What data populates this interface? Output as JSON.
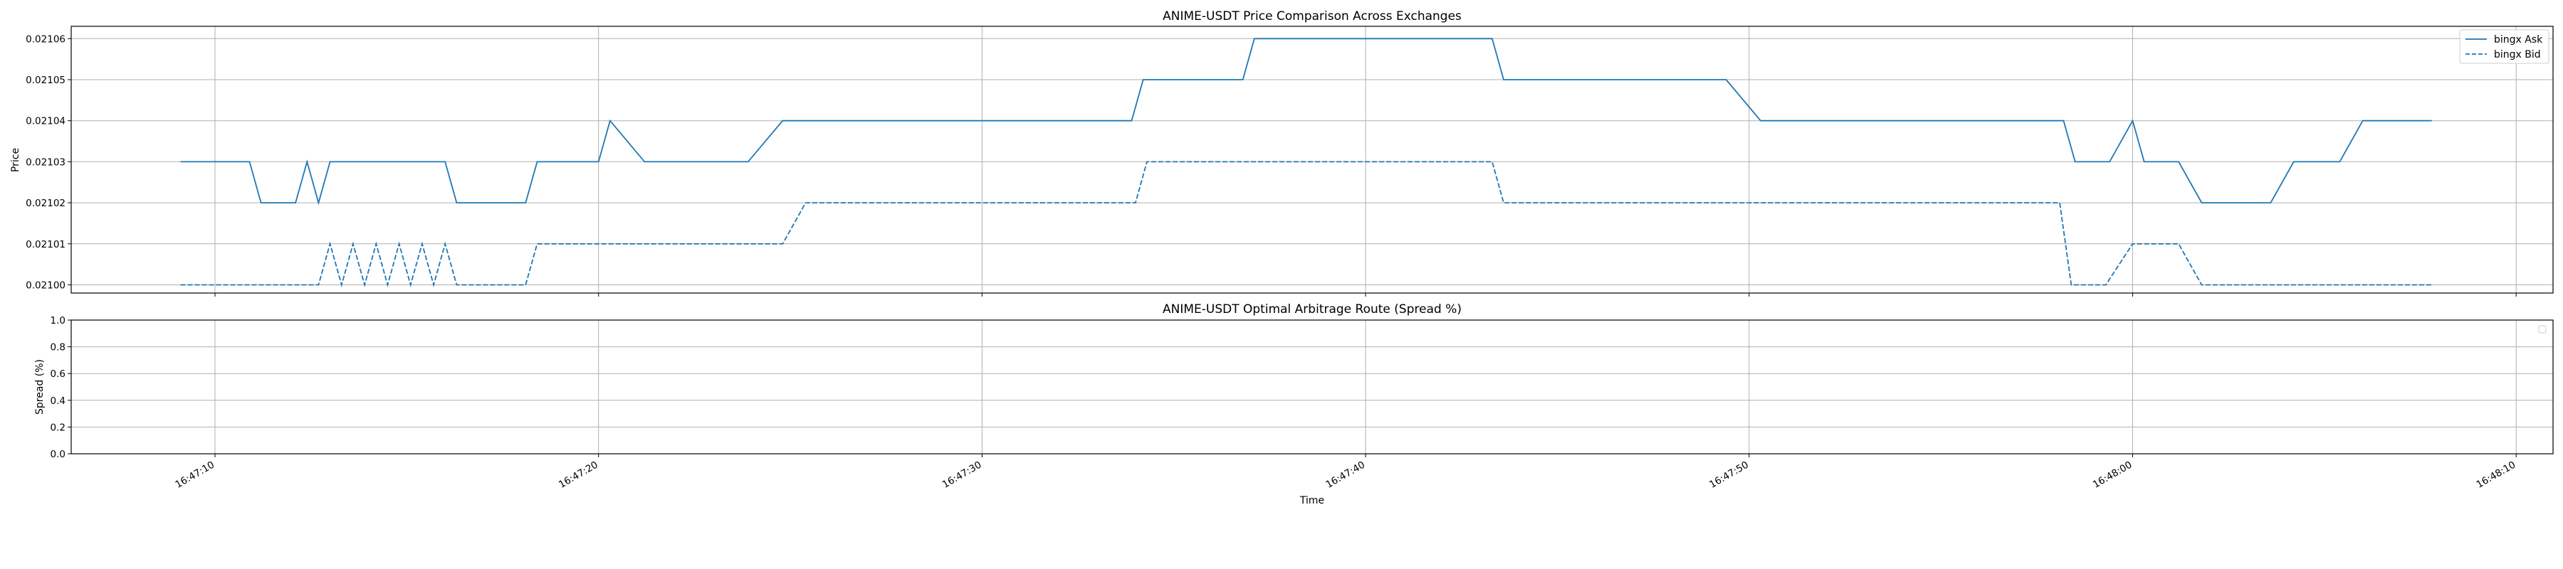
{
  "chart_data": [
    {
      "type": "line",
      "title": "ANIME-USDT Price Comparison Across Exchanges",
      "xlabel": "",
      "ylabel": "Price",
      "ylim": [
        0.020998,
        0.021063
      ],
      "yticks": [
        "0.02100",
        "0.02101",
        "0.02102",
        "0.02103",
        "0.02104",
        "0.02105",
        "0.02106"
      ],
      "grid": true,
      "legend": "top-right",
      "series": [
        {
          "name": "bingx Ask",
          "style": "solid",
          "color": "#1f77b4",
          "points": [
            [
              "16:47:09.1",
              0.02103
            ],
            [
              "16:47:10.9",
              0.02103
            ],
            [
              "16:47:11.2",
              0.02102
            ],
            [
              "16:47:12.1",
              0.02102
            ],
            [
              "16:47:12.4",
              0.02103
            ],
            [
              "16:47:12.7",
              0.02102
            ],
            [
              "16:47:13.0",
              0.02103
            ],
            [
              "16:47:16.0",
              0.02103
            ],
            [
              "16:47:16.3",
              0.02102
            ],
            [
              "16:47:18.1",
              0.02102
            ],
            [
              "16:47:18.4",
              0.02103
            ],
            [
              "16:47:20.0",
              0.02103
            ],
            [
              "16:47:20.3",
              0.02104
            ],
            [
              "16:47:21.2",
              0.02103
            ],
            [
              "16:47:23.9",
              0.02103
            ],
            [
              "16:47:24.8",
              0.02104
            ],
            [
              "16:47:33.9",
              0.02104
            ],
            [
              "16:47:34.2",
              0.02105
            ],
            [
              "16:47:36.8",
              0.02105
            ],
            [
              "16:47:37.1",
              0.02106
            ],
            [
              "16:47:43.3",
              0.02106
            ],
            [
              "16:47:43.6",
              0.02105
            ],
            [
              "16:47:49.4",
              0.02105
            ],
            [
              "16:47:50.3",
              0.02104
            ],
            [
              "16:47:58.2",
              0.02104
            ],
            [
              "16:47:58.5",
              0.02103
            ],
            [
              "16:47:59.4",
              0.02103
            ],
            [
              "16:48:00.0",
              0.02104
            ],
            [
              "16:48:00.3",
              0.02103
            ],
            [
              "16:48:01.2",
              0.02103
            ],
            [
              "16:48:01.8",
              0.02102
            ],
            [
              "16:48:03.6",
              0.02102
            ],
            [
              "16:48:04.2",
              0.02103
            ],
            [
              "16:48:05.4",
              0.02103
            ],
            [
              "16:48:06.0",
              0.02104
            ],
            [
              "16:48:07.8",
              0.02104
            ]
          ]
        },
        {
          "name": "bingx Bid",
          "style": "dashed",
          "color": "#1f77b4",
          "points": [
            [
              "16:47:09.1",
              0.021
            ],
            [
              "16:47:12.7",
              0.021
            ],
            [
              "16:47:13.0",
              0.02101
            ],
            [
              "16:47:13.3",
              0.021
            ],
            [
              "16:47:13.6",
              0.02101
            ],
            [
              "16:47:13.9",
              0.021
            ],
            [
              "16:47:14.2",
              0.02101
            ],
            [
              "16:47:14.5",
              0.021
            ],
            [
              "16:47:14.8",
              0.02101
            ],
            [
              "16:47:15.1",
              0.021
            ],
            [
              "16:47:15.4",
              0.02101
            ],
            [
              "16:47:15.7",
              0.021
            ],
            [
              "16:47:16.0",
              0.02101
            ],
            [
              "16:47:16.3",
              0.021
            ],
            [
              "16:47:18.1",
              0.021
            ],
            [
              "16:47:18.4",
              0.02101
            ],
            [
              "16:47:24.8",
              0.02101
            ],
            [
              "16:47:25.4",
              0.02102
            ],
            [
              "16:47:34.0",
              0.02102
            ],
            [
              "16:47:34.3",
              0.02103
            ],
            [
              "16:47:43.3",
              0.02103
            ],
            [
              "16:47:43.6",
              0.02102
            ],
            [
              "16:47:58.1",
              0.02102
            ],
            [
              "16:47:58.4",
              0.021
            ],
            [
              "16:47:59.3",
              0.021
            ],
            [
              "16:48:00.0",
              0.02101
            ],
            [
              "16:48:01.2",
              0.02101
            ],
            [
              "16:48:01.8",
              0.021
            ],
            [
              "16:48:07.8",
              0.021
            ]
          ]
        }
      ]
    },
    {
      "type": "line",
      "title": "ANIME-USDT Optimal Arbitrage Route (Spread %)",
      "xlabel": "Time",
      "ylabel": "Spread (%)",
      "ylim": [
        0.0,
        1.0
      ],
      "yticks": [
        "0.0",
        "0.2",
        "0.4",
        "0.6",
        "0.8",
        "1.0"
      ],
      "grid": true,
      "legend": "top-right",
      "series": []
    }
  ],
  "x_axis": {
    "ticks": [
      "16:47:10",
      "16:47:20",
      "16:47:30",
      "16:47:40",
      "16:47:50",
      "16:48:00",
      "16:48:10"
    ]
  }
}
